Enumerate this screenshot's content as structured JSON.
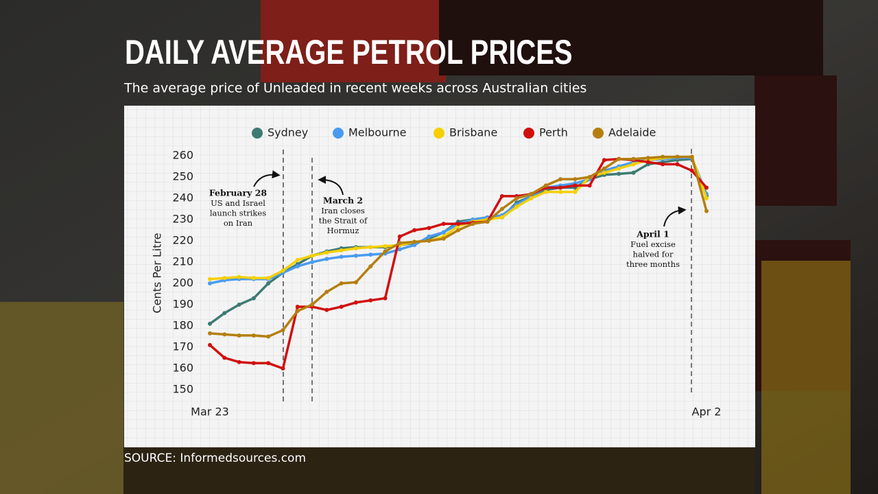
{
  "chart_data": {
    "type": "line",
    "title": "DAILY AVERAGE PETROL PRICES",
    "subtitle": "The average price of Unleaded in recent weeks across Australian cities",
    "source": "SOURCE: Informedsources.com",
    "y_label": "Cents Per Litre",
    "categories": [
      "Mar 23",
      null,
      null,
      null,
      null,
      null,
      null,
      null,
      null,
      null,
      null,
      null,
      null,
      null,
      null,
      null,
      null,
      null,
      null,
      null,
      null,
      null,
      null,
      null,
      null,
      null,
      null,
      null,
      null,
      null,
      null,
      null,
      null,
      null,
      "Apr 2"
    ],
    "ylim": [
      150,
      260
    ],
    "yticks": [
      150,
      160,
      170,
      180,
      190,
      200,
      210,
      220,
      230,
      240,
      250,
      260
    ],
    "series": [
      {
        "name": "Sydney",
        "color": "#3d7b73",
        "values": [
          181,
          186,
          190,
          193,
          200,
          205,
          209,
          213,
          215,
          216.5,
          217,
          217,
          217,
          218,
          219,
          221,
          224,
          229,
          230,
          231,
          231,
          238,
          241,
          244,
          245,
          245,
          249,
          251,
          251.5,
          252,
          256,
          257,
          258,
          258.5,
          241
        ]
      },
      {
        "name": "Melbourne",
        "color": "#4a9bef",
        "values": [
          200,
          201.5,
          202,
          202,
          202,
          205,
          208,
          210,
          211.5,
          212.5,
          213,
          213.5,
          214,
          216,
          218,
          222,
          224,
          228,
          230,
          231,
          232,
          237,
          241,
          245,
          246,
          247,
          249,
          253,
          255,
          257,
          258,
          258.5,
          259,
          259,
          242
        ]
      },
      {
        "name": "Brisbane",
        "color": "#f5d000",
        "values": [
          202,
          202.5,
          203,
          202.5,
          202.5,
          206,
          211,
          213,
          214.5,
          215.5,
          216.5,
          217,
          217.5,
          218,
          219.5,
          220,
          222,
          227,
          229,
          230,
          231,
          236,
          240,
          243,
          243,
          243,
          250,
          252,
          254,
          256,
          258,
          259,
          259.5,
          259.5,
          240
        ]
      },
      {
        "name": "Perth",
        "color": "#d0100f",
        "values": [
          171,
          165,
          163,
          162.5,
          162.5,
          160,
          189,
          189,
          187.5,
          189,
          191,
          192,
          193,
          222,
          225,
          226,
          228,
          228,
          228.5,
          229,
          241,
          241,
          242,
          245,
          245,
          246,
          246,
          258,
          258.5,
          258,
          257,
          256,
          256,
          253,
          245
        ]
      },
      {
        "name": "Adelaide",
        "color": "#b57f10",
        "values": [
          176.5,
          176,
          175.5,
          175.5,
          175,
          178,
          187,
          190,
          196,
          200,
          200.5,
          208,
          215,
          219,
          219.5,
          220,
          221,
          225,
          228,
          229,
          235,
          240,
          242,
          246,
          249,
          249,
          250,
          254,
          258.5,
          258.5,
          259,
          259.5,
          259.5,
          259.5,
          234
        ]
      }
    ],
    "annotations": [
      {
        "title": "February 28",
        "lines": [
          "US and Israel",
          "launch strikes",
          "on Iran"
        ]
      },
      {
        "title": "March 2",
        "lines": [
          "Iran closes",
          "the Strait of",
          "Hormuz"
        ]
      },
      {
        "title": "April 1",
        "lines": [
          "Fuel excise",
          "halved for",
          "three months"
        ]
      }
    ]
  }
}
